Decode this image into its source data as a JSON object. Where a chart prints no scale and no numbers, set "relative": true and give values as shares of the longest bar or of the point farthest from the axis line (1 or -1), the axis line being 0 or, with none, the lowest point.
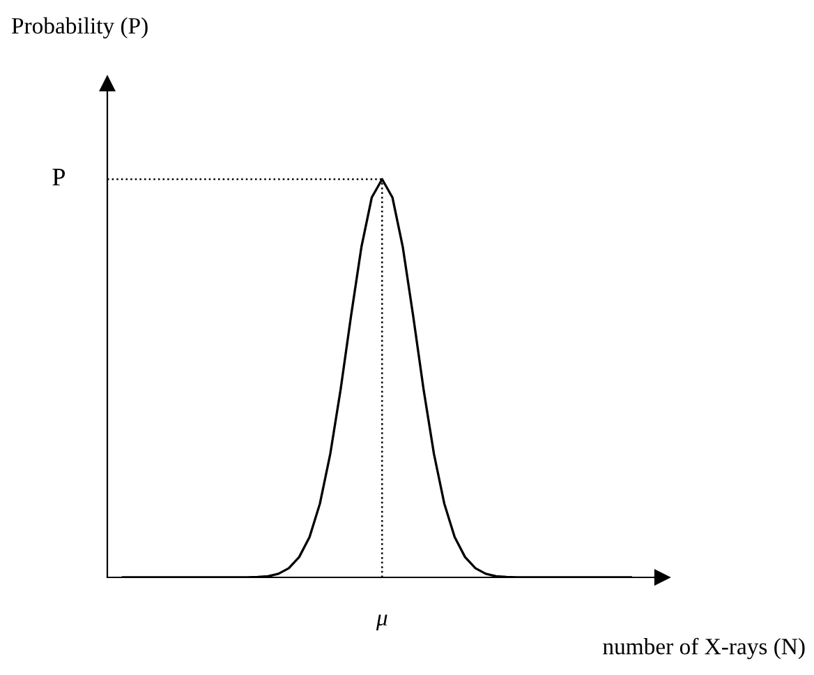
{
  "chart_data": {
    "type": "line",
    "relative": true,
    "xlabel": "number of X-rays (N)",
    "annotations": [
      "Probability (P)",
      "μ"
    ],
    "categories": [
      null,
      null,
      null,
      null,
      null,
      null,
      null,
      null,
      null,
      null,
      null,
      null,
      null,
      null,
      null,
      null,
      null,
      null,
      null,
      null,
      null,
      null,
      null,
      null,
      null,
      null,
      null,
      null,
      null,
      null,
      null,
      null,
      null,
      null,
      null,
      null,
      null,
      null,
      null,
      null,
      null,
      null,
      null,
      null,
      null,
      null,
      null,
      null,
      null,
      null
    ],
    "series": [
      {
        "color": "#000000",
        "values": [
          0,
          0,
          0,
          0,
          0,
          0,
          0,
          0,
          0,
          0,
          0,
          0,
          0,
          0.001,
          0.003,
          0.009,
          0.023,
          0.051,
          0.101,
          0.185,
          0.31,
          0.472,
          0.656,
          0.829,
          0.954,
          1,
          0.954,
          0.829,
          0.656,
          0.472,
          0.31,
          0.185,
          0.101,
          0.051,
          0.023,
          0.009,
          0.003,
          0.001,
          0,
          0,
          0,
          0,
          0,
          0,
          0,
          0,
          0,
          0,
          0,
          0
        ]
      }
    ],
    "ref_lines": [
      {
        "axis": "y",
        "value": 1,
        "label": "P",
        "line_style": "dotted"
      }
    ],
    "marker": "none",
    "line_style": "solid"
  }
}
